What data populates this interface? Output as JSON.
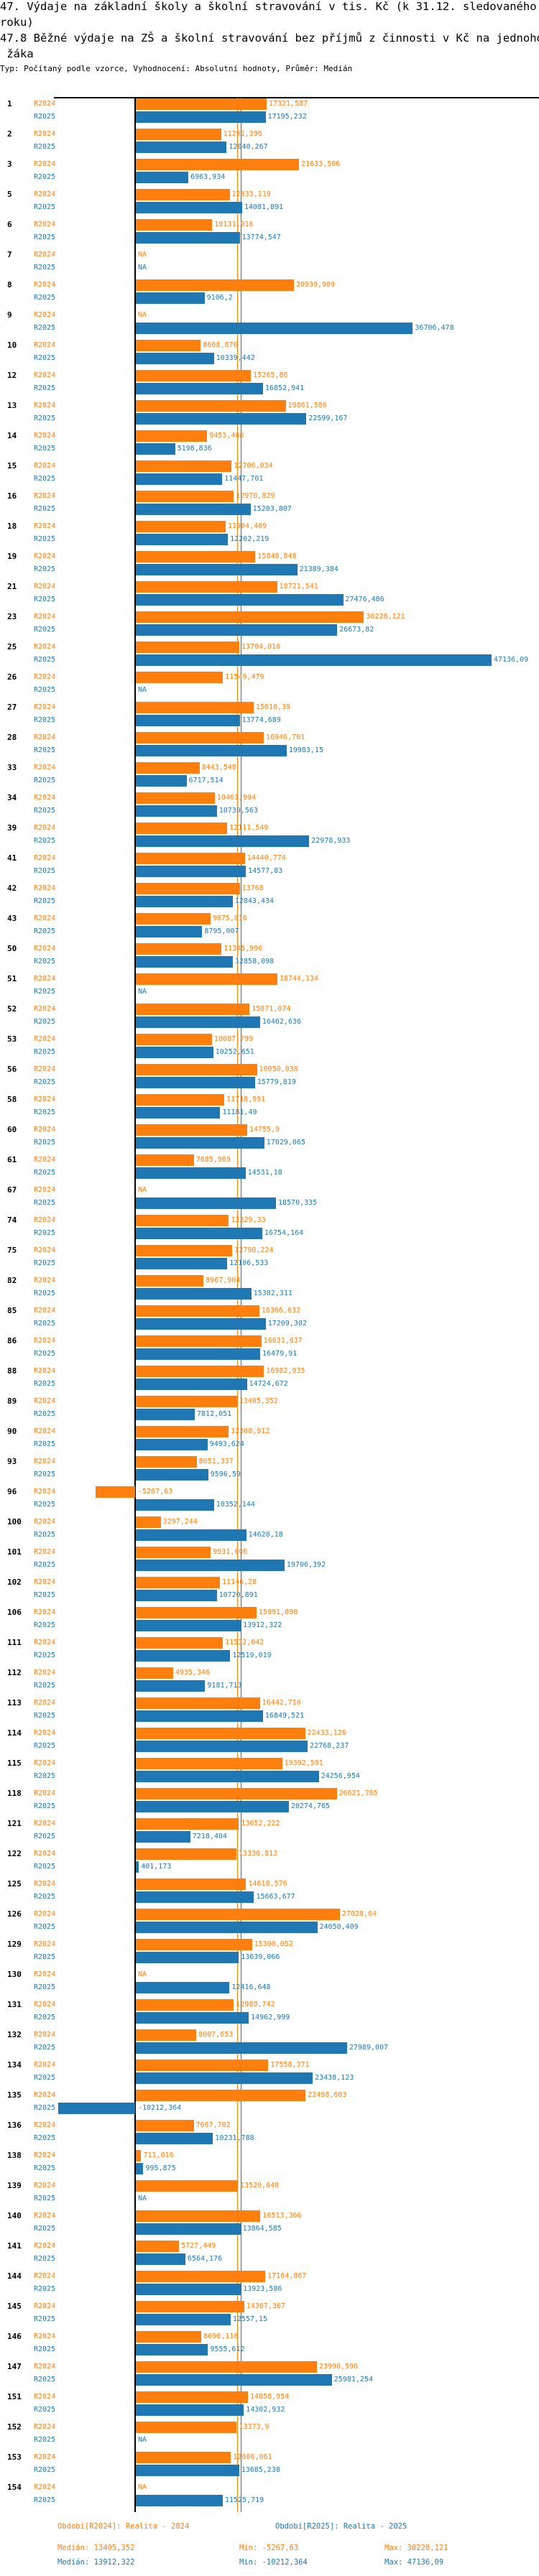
{
  "title_lines": [
    "47. Výdaje na základní školy a školní stravování v tis. Kč (k 31.12. sledovaného",
    "roku)",
    "47.8 Běžné výdaje na ZŠ a školní stravování bez příjmů z činnosti v Kč na jednoho",
    " žáka"
  ],
  "subtitle": "Typ: Počítaný podle vzorce, Vyhodnocení: Absolutní hodnoty, Průměr: Medián",
  "colors": {
    "R2024": "#ff7f0e",
    "R2025": "#1f77b4"
  },
  "chart_data": {
    "type": "bar",
    "orientation": "horizontal",
    "series_names": [
      "R2024",
      "R2025"
    ],
    "na_text": "NA",
    "medians": {
      "R2024": "13405,352",
      "R2025": "13912,322"
    },
    "groups": [
      [
        "1",
        "17321,587",
        "17195,232"
      ],
      [
        "2",
        "11291,396",
        "12040,267"
      ],
      [
        "3",
        "21633,506",
        "6963,934"
      ],
      [
        "5",
        "12433,119",
        "14081,891"
      ],
      [
        "6",
        "10131,916",
        "13774,547"
      ],
      [
        "7",
        null,
        null
      ],
      [
        "8",
        "20939,909",
        "9106,2"
      ],
      [
        "9",
        null,
        "36706,478"
      ],
      [
        "10",
        "8608,876",
        "10339,442"
      ],
      [
        "12",
        "15265,86",
        "16852,941"
      ],
      [
        "13",
        "19861,586",
        "22599,167"
      ],
      [
        "14",
        "9453,488",
        "5198,836"
      ],
      [
        "15",
        "12706,034",
        "11447,701"
      ],
      [
        "16",
        "12970,829",
        "15203,807"
      ],
      [
        "18",
        "11904,409",
        "12202,219"
      ],
      [
        "19",
        "15848,848",
        "21389,384"
      ],
      [
        "21",
        "18721,541",
        "27476,486"
      ],
      [
        "23",
        "30228,121",
        "26673,82"
      ],
      [
        "25",
        "13704,016",
        "47136,09"
      ],
      [
        "26",
        "11549,479",
        null
      ],
      [
        "27",
        "15610,39",
        "13774,689"
      ],
      [
        "28",
        "16946,701",
        "19983,15"
      ],
      [
        "33",
        "8443,548",
        "6717,514"
      ],
      [
        "34",
        "10461,994",
        "10739,563"
      ],
      [
        "39",
        "12111,549",
        "22978,933"
      ],
      [
        "41",
        "14440,774",
        "14577,83"
      ],
      [
        "42",
        "13768",
        "12843,434"
      ],
      [
        "43",
        "9875,816",
        "8795,007"
      ],
      [
        "50",
        "11345,996",
        "12858,098"
      ],
      [
        "51",
        "18744,134",
        null
      ],
      [
        "52",
        "15071,074",
        "16462,636"
      ],
      [
        "53",
        "10087,799",
        "10252,651"
      ],
      [
        "56",
        "16050,038",
        "15779,819"
      ],
      [
        "58",
        "11718,991",
        "11181,49"
      ],
      [
        "60",
        "14755,9",
        "17029,065"
      ],
      [
        "61",
        "7685,969",
        "14531,18"
      ],
      [
        "67",
        null,
        "18570,335"
      ],
      [
        "74",
        "12329,33",
        "16754,164"
      ],
      [
        "75",
        "12790,224",
        "12106,533"
      ],
      [
        "82",
        "8967,904",
        "15302,311"
      ],
      [
        "85",
        "16366,632",
        "17209,302"
      ],
      [
        "86",
        "16631,637",
        "16479,91"
      ],
      [
        "88",
        "16982,935",
        "14724,672"
      ],
      [
        "89",
        "13405,352",
        "7812,051"
      ],
      [
        "90",
        "12308,912",
        "9493,624"
      ],
      [
        "93",
        "8051,337",
        "9596,59"
      ],
      [
        "96",
        "-5267,63",
        "10352,144"
      ],
      [
        "100",
        "3297,244",
        "14628,18"
      ],
      [
        "101",
        "9931,606",
        "19706,392"
      ],
      [
        "102",
        "11146,28",
        "10720,891"
      ],
      [
        "106",
        "15991,898",
        "13912,322"
      ],
      [
        "111",
        "11532,042",
        "12519,019"
      ],
      [
        "112",
        "4935,346",
        "9181,713"
      ],
      [
        "113",
        "16442,716",
        "16849,521"
      ],
      [
        "114",
        "22433,126",
        "22768,237"
      ],
      [
        "115",
        "19392,591",
        "24256,954"
      ],
      [
        "118",
        "26621,765",
        "20274,765"
      ],
      [
        "121",
        "13652,222",
        "7218,404"
      ],
      [
        "122",
        "13336,812",
        "401,173"
      ],
      [
        "125",
        "14618,576",
        "15663,677"
      ],
      [
        "126",
        "27028,64",
        "24050,409"
      ],
      [
        "129",
        "15390,052",
        "13639,066"
      ],
      [
        "130",
        null,
        "12416,648"
      ],
      [
        "131",
        "12989,742",
        "14962,999"
      ],
      [
        "132",
        "8007,653",
        "27989,007"
      ],
      [
        "134",
        "17558,371",
        "23438,123"
      ],
      [
        "135",
        "22498,603",
        "-10212,364"
      ],
      [
        "136",
        "7667,702",
        "10231,788"
      ],
      [
        "138",
        "711,016",
        "995,875"
      ],
      [
        "139",
        "13520,648",
        null
      ],
      [
        "140",
        "16513,366",
        "13864,585"
      ],
      [
        "141",
        "5727,449",
        "6564,176"
      ],
      [
        "144",
        "17164,867",
        "13923,586"
      ],
      [
        "145",
        "14367,367",
        "12557,15"
      ],
      [
        "146",
        "8690,116",
        "9555,612"
      ],
      [
        "147",
        "23990,596",
        "25981,254"
      ],
      [
        "151",
        "14858,954",
        "14302,932"
      ],
      [
        "152",
        "13373,9",
        null
      ],
      [
        "153",
        "12606,061",
        "13685,238"
      ],
      [
        "154",
        null,
        "11525,719"
      ]
    ]
  },
  "footer": {
    "legend_2024": "Období[R2024]: Realita - 2024",
    "legend_2025": "Období[R2025]: Realita - 2025",
    "median_2024": "Medián: 13405,352",
    "min_2024": "Min: -5267,63",
    "max_2024": "Max: 30228,121",
    "median_2025": "Medián: 13912,322",
    "min_2025": "Min: -10212,364",
    "max_2025": "Max: 47136,09"
  }
}
